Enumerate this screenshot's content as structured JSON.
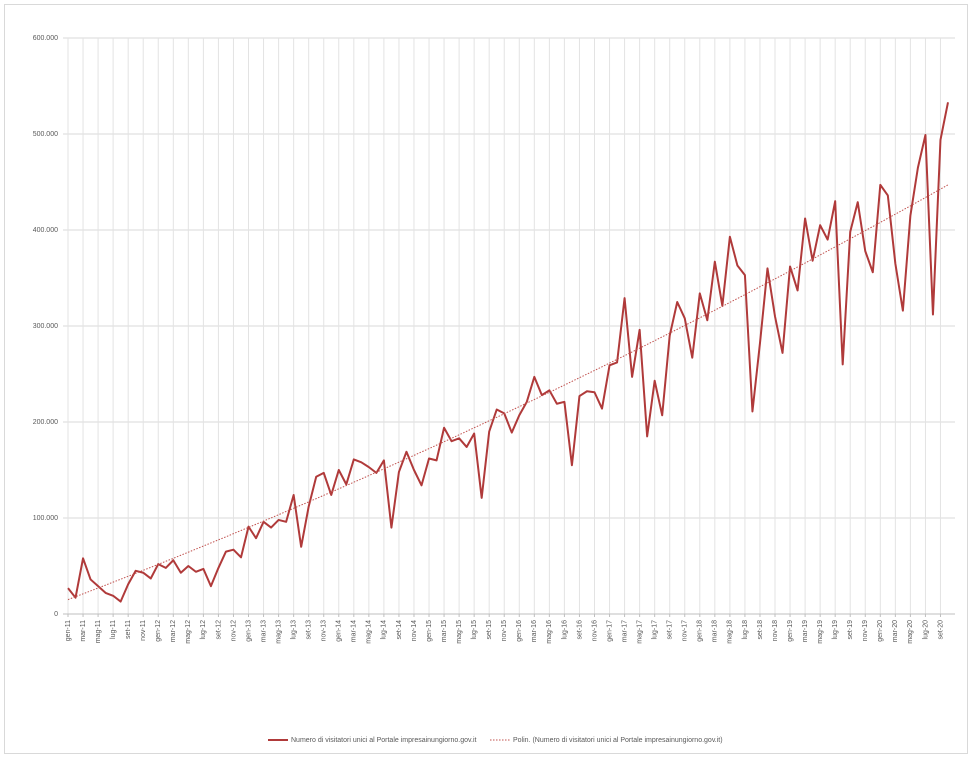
{
  "chart_data": {
    "type": "line",
    "categories": [
      "gen-11",
      null,
      "mar-11",
      null,
      "mag-11",
      null,
      "lug-11",
      null,
      "set-11",
      null,
      "nov-11",
      null,
      "gen-12",
      null,
      "mar-12",
      null,
      "mag-12",
      null,
      "lug-12",
      null,
      "set-12",
      null,
      "nov-12",
      null,
      "gen-13",
      null,
      "mar-13",
      null,
      "mag-13",
      null,
      "lug-13",
      null,
      "set-13",
      null,
      "nov-13",
      null,
      "gen-14",
      null,
      "mar-14",
      null,
      "mag-14",
      null,
      "lug-14",
      null,
      "set-14",
      null,
      "nov-14",
      null,
      "gen-15",
      null,
      "mar-15",
      null,
      "mag-15",
      null,
      "lug-15",
      null,
      "set-15",
      null,
      "nov-15",
      null,
      "gen-16",
      null,
      "mar-16",
      null,
      "mag-16",
      null,
      "lug-16",
      null,
      "set-16",
      null,
      "nov-16",
      null,
      "gen-17",
      null,
      "mar-17",
      null,
      "mag-17",
      null,
      "lug-17",
      null,
      "set-17",
      null,
      "nov-17",
      null,
      "gen-18",
      null,
      "mar-18",
      null,
      "mag-18",
      null,
      "lug-18",
      null,
      "set-18",
      null,
      "nov-18",
      null,
      "gen-19",
      null,
      "mar-19",
      null,
      "mag-19",
      null,
      "lug-19",
      null,
      "set-19",
      null,
      "nov-19",
      null,
      "gen-20",
      null,
      "mar-20",
      null,
      "mag-20",
      null,
      "lug-20",
      null,
      "set-20",
      null
    ],
    "series": [
      {
        "name": "Numero di visitatori unici al Portale impresainungiorno.gov.it",
        "color": "#b03a3a",
        "line_style": "solid",
        "values": [
          27000,
          17000,
          58000,
          36000,
          29000,
          22000,
          19000,
          13000,
          31000,
          45000,
          43000,
          37000,
          52000,
          48000,
          56000,
          43000,
          50000,
          44000,
          47000,
          29000,
          48000,
          65000,
          67000,
          59000,
          91000,
          79000,
          96000,
          90000,
          98000,
          96000,
          124000,
          70000,
          112000,
          143000,
          147000,
          124000,
          150000,
          135000,
          161000,
          158000,
          153000,
          147000,
          160000,
          90000,
          148000,
          169000,
          150000,
          134000,
          162000,
          160000,
          194000,
          180000,
          183000,
          174000,
          188000,
          121000,
          190000,
          213000,
          209000,
          189000,
          207000,
          221000,
          247000,
          228000,
          233000,
          219000,
          221000,
          155000,
          227000,
          232000,
          231000,
          214000,
          259000,
          262000,
          329000,
          247000,
          296000,
          185000,
          243000,
          207000,
          290000,
          325000,
          308000,
          267000,
          334000,
          306000,
          367000,
          321000,
          393000,
          363000,
          353000,
          211000,
          282000,
          360000,
          310000,
          272000,
          362000,
          337000,
          412000,
          368000,
          405000,
          390000,
          430000,
          260000,
          398000,
          429000,
          378000,
          356000,
          447000,
          436000,
          365000,
          316000,
          415000,
          465000,
          499000,
          312000,
          494000,
          533000
        ]
      },
      {
        "name": "Polin. (Numero di visitatori unici al Portale impresainungiorno.gov.it)",
        "color": "#c0504d",
        "line_style": "dotted",
        "values": [
          15000,
          18000,
          21000,
          24000,
          27100,
          30100,
          33200,
          36200,
          39300,
          42400,
          45500,
          48600,
          51700,
          54900,
          58000,
          61200,
          64400,
          67600,
          70800,
          74000,
          77200,
          80400,
          83700,
          87000,
          90200,
          93500,
          96800,
          100100,
          103400,
          106800,
          110100,
          113500,
          116800,
          120200,
          123600,
          127000,
          130400,
          133800,
          137300,
          140700,
          144200,
          147700,
          151200,
          154700,
          158200,
          161700,
          165200,
          168800,
          172300,
          175900,
          179500,
          183100,
          186700,
          190300,
          194000,
          197600,
          201300,
          204900,
          208600,
          212300,
          216000,
          219700,
          223400,
          227200,
          230900,
          234700,
          238500,
          242300,
          246100,
          249900,
          253700,
          257500,
          261400,
          265200,
          269100,
          273000,
          276900,
          280800,
          284700,
          288700,
          292600,
          296600,
          300500,
          304500,
          308500,
          312500,
          316500,
          320500,
          324600,
          328600,
          332700,
          336800,
          340900,
          345000,
          349100,
          353200,
          357300,
          361500,
          365600,
          369800,
          374000,
          378200,
          382400,
          386600,
          390900,
          395100,
          399400,
          403600,
          407900,
          412200,
          416500,
          420800,
          425100,
          429500,
          433800,
          438200,
          442600,
          447000
        ]
      }
    ],
    "ylim": [
      0,
      600000
    ],
    "yticks": [
      0,
      {
        "value": 100000,
        "label": "100.000"
      },
      {
        "value": 200000,
        "label": "200.000"
      },
      {
        "value": 300000,
        "label": "300.000"
      },
      {
        "value": 400000,
        "label": "400.000"
      },
      {
        "value": 500000,
        "label": "500.000"
      },
      {
        "value": 600000,
        "label": "600.000"
      }
    ],
    "grid": true
  }
}
